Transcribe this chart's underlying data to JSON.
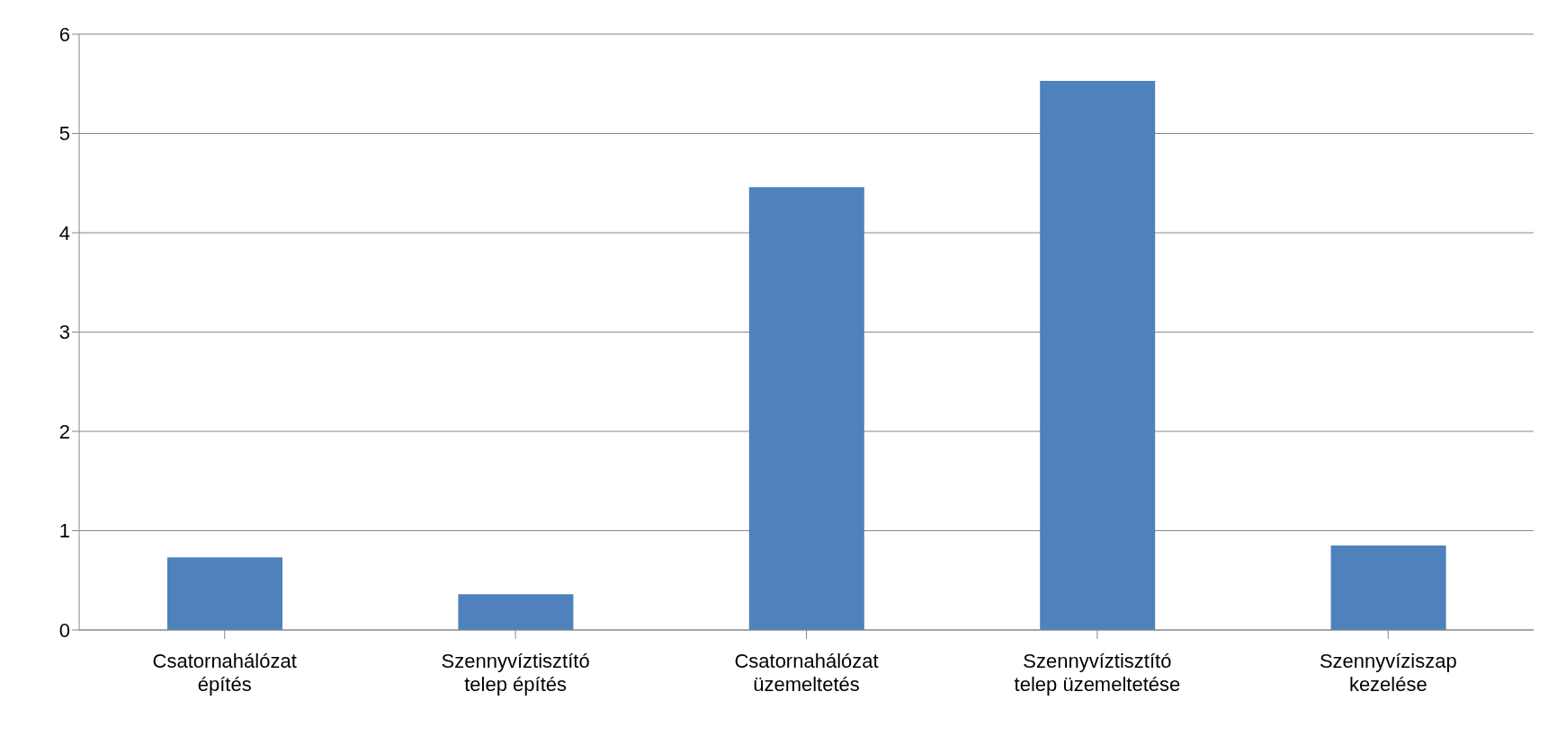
{
  "chart_data": {
    "type": "bar",
    "categories": [
      "Csatornahálózat építés",
      "Szennyvíztisztító telep építés",
      "Csatornahálózat üzemeltetés",
      "Szennyvíztisztító telep üzemeltetése",
      "Szennyvíziszap kezelése"
    ],
    "values": [
      0.73,
      0.36,
      4.46,
      5.53,
      0.85
    ],
    "color": "#4f81bd",
    "ylim": [
      0,
      6
    ],
    "yticks": [
      0,
      1,
      2,
      3,
      4,
      5,
      6
    ],
    "grid": "y"
  }
}
